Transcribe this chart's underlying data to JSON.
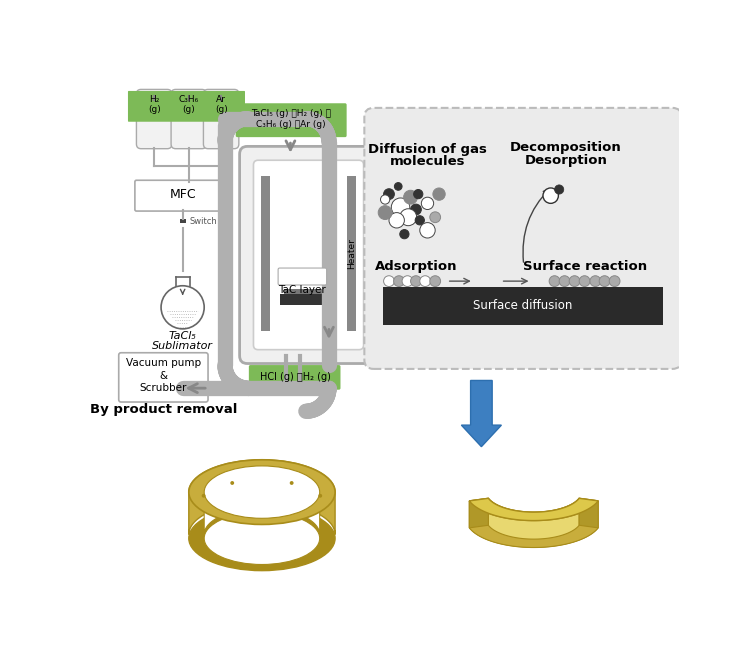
{
  "bg_color": "#ffffff",
  "green_label": "#7dba57",
  "gray_pipe": "#b0b0b0",
  "gray_pipe_dark": "#888888",
  "chamber_gray": "#d8d8d8",
  "dashed_box_color": "#bbbbbb",
  "dashed_box_fill": "#ebebeb",
  "gold_main": "#c8ad3c",
  "gold_dark": "#a88c1a",
  "gold_light": "#ddc84a",
  "gold_side": "#b09828",
  "gold_inner": "#e8d870",
  "inlet_label": "TaCl₅ (g) 、H₂ (g) 、\nC₃H₆ (g) 、Ar (g)",
  "outlet_label": "HCl (g) 、H₂ (g)",
  "mfc_label": "MFC",
  "switch_label": "Switch",
  "sublimator_label_line1": "TaCl₅",
  "sublimator_label_line2": "Sublimator",
  "tac_layer_label": "TaC layer",
  "heater_label": "Heater",
  "vacuum_label": "Vacuum pump\n&\nScrubber",
  "byproduct_label": "By product removal",
  "diff_title_line1": "Diffusion of gas",
  "diff_title_line2": "molecules",
  "decomp_title_line1": "Decomposition",
  "decomp_title_line2": "Desorption",
  "adsorption_label": "Adsorption",
  "surface_reaction_label": "Surface reaction",
  "surface_diffusion_label": "Surface diffusion",
  "gas_labels": [
    "H₂\n(g)",
    "C₃H₆\n(g)",
    "Ar\n(g)"
  ]
}
